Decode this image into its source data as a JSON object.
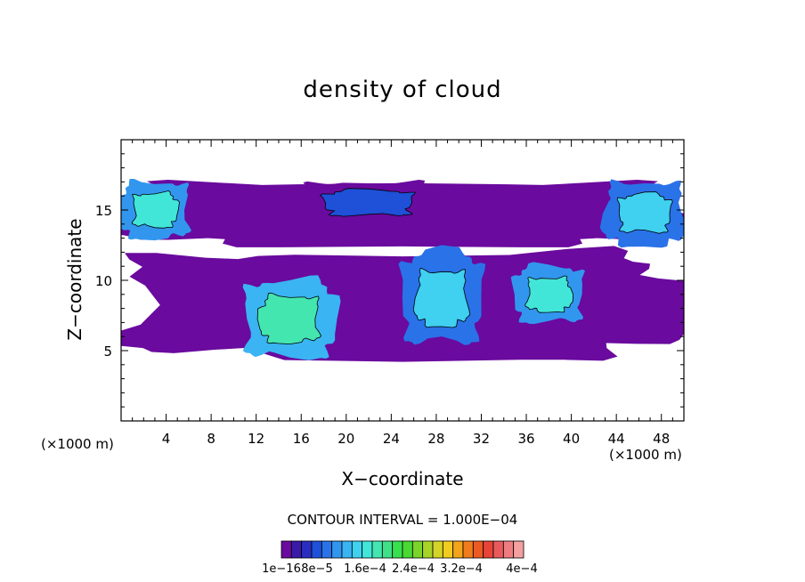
{
  "chart_data": {
    "type": "heatmap",
    "title": "density of cloud",
    "xlabel": "X−coordinate",
    "ylabel": "Z−coordinate",
    "x_unit_note": "(×1000 m)",
    "x_ticks": [
      4,
      8,
      12,
      16,
      20,
      24,
      28,
      32,
      36,
      40,
      44,
      48
    ],
    "y_ticks": [
      5,
      10,
      15
    ],
    "xlim": [
      0,
      50
    ],
    "ylim": [
      0,
      20
    ],
    "grid": false,
    "contour_interval_text": "CONTOUR INTERVAL = 1.000E−04",
    "colorbar": {
      "labels": [
        "1e−16",
        "8e−5",
        "1.6e−4",
        "2.4e−4",
        "3.2e−4",
        "4e−4"
      ],
      "levels": [
        1e-16,
        8e-05,
        0.00016,
        0.00024,
        0.00032,
        0.0004
      ],
      "colors": [
        "#6a0a9e",
        "#3a1aa8",
        "#2a2ec0",
        "#1e50d8",
        "#2a72e8",
        "#3296ee",
        "#3ab4f2",
        "#40d0f0",
        "#42e6d8",
        "#44e6b0",
        "#40e088",
        "#38e050",
        "#4ad832",
        "#7ad42a",
        "#a8d428",
        "#d4d428",
        "#f2cc20",
        "#f2a41c",
        "#f07c1c",
        "#ec5a24",
        "#e84438",
        "#ea5a5c",
        "#ee7c80",
        "#f4a0a0"
      ]
    },
    "regions": [
      {
        "name": "upper cloud layer",
        "level": 1,
        "x": [
          0,
          50
        ],
        "z": [
          12.5,
          17
        ]
      },
      {
        "name": "middle cloud layer",
        "level": 1,
        "x": [
          0,
          50
        ],
        "z": [
          4.5,
          12
        ]
      },
      {
        "name": "cell near x=14",
        "level": 9,
        "x": [
          11,
          19
        ],
        "z": [
          4.5,
          10
        ]
      },
      {
        "name": "cell near x=28",
        "level": 7,
        "x": [
          25,
          32
        ],
        "z": [
          5.5,
          12
        ]
      },
      {
        "name": "cell near x=38",
        "level": 8,
        "x": [
          35,
          41
        ],
        "z": [
          7,
          11
        ]
      },
      {
        "name": "upper left cell",
        "level": 8,
        "x": [
          0,
          6
        ],
        "z": [
          13,
          17
        ]
      },
      {
        "name": "upper right cell",
        "level": 7,
        "x": [
          43,
          50
        ],
        "z": [
          12.5,
          17
        ]
      },
      {
        "name": "upper center band",
        "level": 3,
        "x": [
          16,
          28
        ],
        "z": [
          14,
          17
        ]
      }
    ]
  }
}
